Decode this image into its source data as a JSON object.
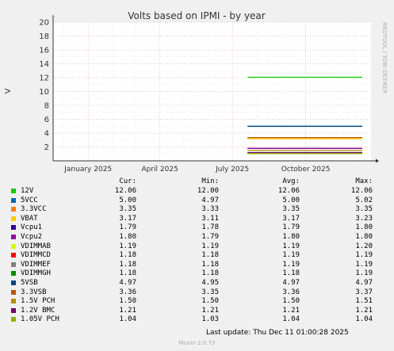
{
  "chart_data": {
    "type": "line",
    "title": "Volts based on IPMI - by year",
    "ylabel": "V",
    "ylim": [
      0,
      20
    ],
    "yticks": [
      2,
      4,
      6,
      8,
      10,
      12,
      14,
      16,
      18,
      20
    ],
    "xlim": [
      "2024-11-18",
      "2025-12-22"
    ],
    "xticks": [
      {
        "label": "January 2025",
        "date": "2025-01-01"
      },
      {
        "label": "April 2025",
        "date": "2025-04-01"
      },
      {
        "label": "July 2025",
        "date": "2025-07-01"
      },
      {
        "label": "October 2025",
        "date": "2025-10-01"
      }
    ],
    "data_start": "2025-07-20",
    "data_end": "2025-12-11",
    "grid": true,
    "series": [
      {
        "name": "12V",
        "color": "#00cc00",
        "cur": "12.06",
        "min": "12.00",
        "avg": "12.06",
        "max": "12.06",
        "value": 12.06
      },
      {
        "name": "5VCC",
        "color": "#0066b3",
        "cur": "5.00",
        "min": "4.97",
        "avg": "5.00",
        "max": "5.02",
        "value": 5.0
      },
      {
        "name": "3.3VCC",
        "color": "#ff8000",
        "cur": "3.35",
        "min": "3.33",
        "avg": "3.35",
        "max": "3.35",
        "value": 3.35
      },
      {
        "name": "VBAT",
        "color": "#ffcc00",
        "cur": "3.17",
        "min": "3.11",
        "avg": "3.17",
        "max": "3.23",
        "value": 3.17
      },
      {
        "name": "Vcpu1",
        "color": "#330099",
        "cur": "1.79",
        "min": "1.78",
        "avg": "1.79",
        "max": "1.80",
        "value": 1.79
      },
      {
        "name": "Vcpu2",
        "color": "#990099",
        "cur": "1.80",
        "min": "1.79",
        "avg": "1.80",
        "max": "1.80",
        "value": 1.8
      },
      {
        "name": "VDIMMAB",
        "color": "#ccff00",
        "cur": "1.19",
        "min": "1.19",
        "avg": "1.19",
        "max": "1.20",
        "value": 1.19
      },
      {
        "name": "VDIMMCD",
        "color": "#ff0000",
        "cur": "1.18",
        "min": "1.18",
        "avg": "1.19",
        "max": "1.19",
        "value": 1.18
      },
      {
        "name": "VDIMMEF",
        "color": "#808080",
        "cur": "1.18",
        "min": "1.18",
        "avg": "1.19",
        "max": "1.19",
        "value": 1.18
      },
      {
        "name": "VDIMMGH",
        "color": "#008f00",
        "cur": "1.18",
        "min": "1.18",
        "avg": "1.18",
        "max": "1.19",
        "value": 1.18
      },
      {
        "name": "5VSB",
        "color": "#00487d",
        "cur": "4.97",
        "min": "4.95",
        "avg": "4.97",
        "max": "4.97",
        "value": 4.97
      },
      {
        "name": "3.3VSB",
        "color": "#b35a00",
        "cur": "3.36",
        "min": "3.35",
        "avg": "3.36",
        "max": "3.37",
        "value": 3.36
      },
      {
        "name": "1.5V PCH",
        "color": "#b38f00",
        "cur": "1.50",
        "min": "1.50",
        "avg": "1.50",
        "max": "1.51",
        "value": 1.5
      },
      {
        "name": "1.2V BMC",
        "color": "#6b006b",
        "cur": "1.21",
        "min": "1.21",
        "avg": "1.21",
        "max": "1.21",
        "value": 1.21
      },
      {
        "name": "1.05V PCH",
        "color": "#8fb300",
        "cur": "1.04",
        "min": "1.03",
        "avg": "1.04",
        "max": "1.04",
        "value": 1.04
      }
    ]
  },
  "legend_headers": {
    "cur": "Cur:",
    "min": "Min:",
    "avg": "Avg:",
    "max": "Max:"
  },
  "side_label": "RRDTOOL / TOBI OETIKER",
  "last_update": "Last update: Thu Dec 11 01:00:28 2025",
  "footer": "Munin 2.0.73",
  "colors": {
    "background": "#f0f0f0",
    "plot_bg": "#ffffff",
    "grid_major": "#e6a0a0",
    "grid_minor": "#dcdcdc"
  }
}
